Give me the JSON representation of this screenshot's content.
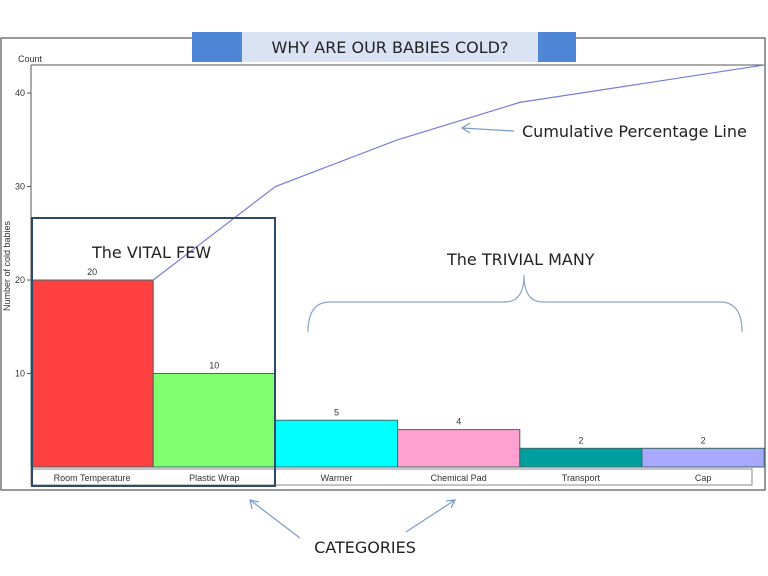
{
  "title": "WHY ARE OUR BABIES COLD?",
  "colors": {
    "title_bg": "#dae3f3",
    "title_accent": "#4f86d6",
    "line": "#7b7bdc",
    "vital_box": "#2e4a6b"
  },
  "annotations": {
    "cumulative": "Cumulative Percentage Line",
    "vital": "The VITAL FEW",
    "trivial": "The TRIVIAL MANY",
    "categories": "CATEGORIES"
  },
  "chart_data": {
    "type": "bar",
    "subtype": "pareto",
    "categories": [
      "Room Temperature",
      "Plastic Wrap",
      "Warmer",
      "Chemical Pad",
      "Transport",
      "Cap"
    ],
    "values": [
      20,
      10,
      5,
      4,
      2,
      2
    ],
    "data_labels": [
      "20",
      "10",
      "5",
      "4",
      "2",
      "2"
    ],
    "bar_colors": [
      "#ff4040",
      "#80ff70",
      "#00ffff",
      "#ffa0d0",
      "#009f9f",
      "#a8a8ff"
    ],
    "cumulative": [
      20,
      30,
      35,
      39,
      41,
      43
    ],
    "ylabel": "Number of cold babies",
    "ytitle": "Count",
    "yticks": [
      "10",
      "20",
      "30",
      "40"
    ],
    "ylim": [
      0,
      43
    ],
    "grid": false
  }
}
